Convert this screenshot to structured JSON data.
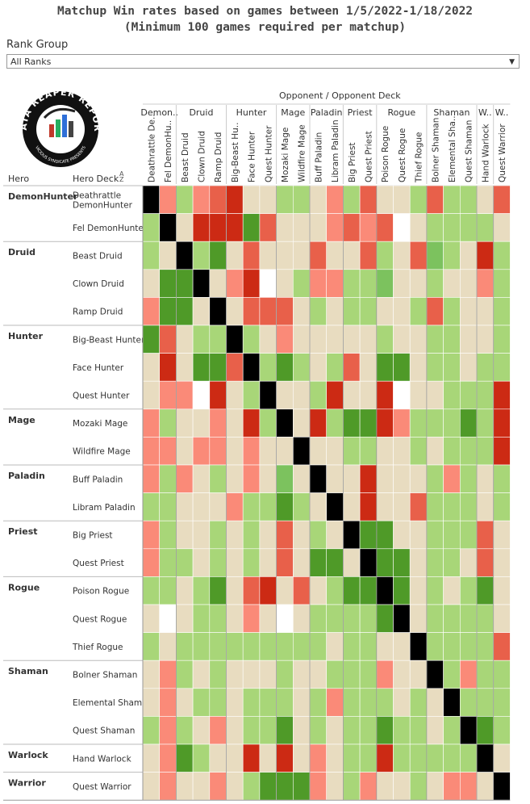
{
  "title_line1": "Matchup Win rates based on games between 1/5/2022-1/18/2022",
  "title_line2": "(Minimum 100 games required per matchup)",
  "filter": {
    "label": "Rank Group",
    "value": "All Ranks"
  },
  "logo": {
    "text_top": "DATA REAPER REPORT",
    "text_bottom": "VICIOUS SYNDICATE PRESENTS"
  },
  "headers": {
    "opponent_axis": "Opponent / Opponent Deck",
    "hero": "Hero",
    "hero_deck": "Hero Deck",
    "sort_icon": "sort-ascending-icon"
  },
  "colors": {
    "mirror": "#000000",
    "neutral": "#e8dcc0",
    "light_green": "#a8d678",
    "mid_green": "#7cc25e",
    "dark_green": "#4f9a28",
    "light_red": "#fa8a78",
    "mid_red": "#e8604a",
    "dark_red": "#cc2a14",
    "white": "#ffffff"
  },
  "chart_data": {
    "type": "heatmap",
    "title": "Matchup Win rates based on games between 1/5/2022-1/18/2022",
    "subtitle": "(Minimum 100 games required per matchup)",
    "xlabel": "Opponent / Opponent Deck",
    "ylabel": "Hero / Hero Deck",
    "opponent_groups": [
      {
        "name": "Demon..",
        "span": 2
      },
      {
        "name": "Druid",
        "span": 3
      },
      {
        "name": "Hunter",
        "span": 3
      },
      {
        "name": "Mage",
        "span": 2
      },
      {
        "name": "Paladin",
        "span": 2
      },
      {
        "name": "Priest",
        "span": 2
      },
      {
        "name": "Rogue",
        "span": 3
      },
      {
        "name": "Shaman",
        "span": 3
      },
      {
        "name": "W..",
        "span": 1
      },
      {
        "name": "W..",
        "span": 1
      }
    ],
    "columns": [
      "Deathrattle De..",
      "Fel DemonHu..",
      "Beast Druid",
      "Clown Druid",
      "Ramp Druid",
      "Big-Beast Hu..",
      "Face Hunter",
      "Quest Hunter",
      "Mozaki Mage",
      "Wildfire Mage",
      "Buff Paladin",
      "Libram Paladin",
      "Big Priest",
      "Quest Priest",
      "Poison Rogue",
      "Quest Rogue",
      "Thief Rogue",
      "Bolner Shaman",
      "Elemental Sha..",
      "Quest Shaman",
      "Hand Warlock",
      "Quest Warrior"
    ],
    "hero_groups": [
      {
        "name": "DemonHunter",
        "span": 2
      },
      {
        "name": "Druid",
        "span": 3
      },
      {
        "name": "Hunter",
        "span": 3
      },
      {
        "name": "Mage",
        "span": 2
      },
      {
        "name": "Paladin",
        "span": 2
      },
      {
        "name": "Priest",
        "span": 2
      },
      {
        "name": "Rogue",
        "span": 3
      },
      {
        "name": "Shaman",
        "span": 3
      },
      {
        "name": "Warlock",
        "span": 1
      },
      {
        "name": "Warrior",
        "span": 1
      }
    ],
    "rows": [
      "Deathrattle DemonHunter",
      "Fel DemonHunter",
      "Beast Druid",
      "Clown Druid",
      "Ramp Druid",
      "Big-Beast Hunter",
      "Face Hunter",
      "Quest Hunter",
      "Mozaki Mage",
      "Wildfire Mage",
      "Buff Paladin",
      "Libram Paladin",
      "Big Priest",
      "Quest Priest",
      "Poison Rogue",
      "Quest Rogue",
      "Thief Rogue",
      "Bolner Shaman",
      "Elemental Shaman",
      "Quest Shaman",
      "Hand Warlock",
      "Quest Warrior"
    ],
    "cell_colors": [
      "KLmLlDnnmmnLmlnnmlmmnl",
      "mKnDDDdlnnnLlLlWnmmmmn",
      "mnKmdnlnnnlnnlmnlMmnDm",
      "nddKnLDWnmLLmmMnnmnnLm",
      "Lddnknlrlnmnmmnnmlmnnm",
      "dlnmmKmnLnnnnnmnnmmnnm",
      "nDnddlkmdmnmlnddnmmnmm",
      "nLLWDnmKnnmDnnDWnnmmmD",
      "LmnnLnDmKnDmddDLmmmdmD",
      "LLnLLnLnnKnnmmnnmnmmmD",
      "LmLnmnLnMnKnnDnnnmLmnm",
      "mmnnnLmmdmnKnDnnlmmmnm",
      "Lmnnmnmnlnmnkddnnmmmln",
      "Lmmnmnmnlnddnkddnmmnln",
      "mmnmdnlDnlnmddKdnmnmdn",
      "nWnmmnLnWnmmmmdKnmmmmn",
      "mnmmmmmmmmmnmmnnKmmmml",
      "nLmnmnnnmnnmmmLnnKmLmm",
      "nLnmmnmmmnmLmmmnmnKmmm",
      "mLmnLnmmdnmnmmdmmnmKdm",
      "nLdmnnDnDnLnmmDmmmmmKn",
      "nLnnLnmdddLnmLnnmnLLnK"
    ],
    "cell_legend": {
      "K": "mirror (same deck)",
      "d": "strong favoured (dark green)",
      "m": "slightly favoured (light green)",
      "n": "even (neutral)",
      "L": "slightly unfavoured (light red)",
      "l": "unfavoured (mid red)",
      "D": "strongly unfavoured (dark red)",
      "W": "insufficient games (blank)",
      "M": "favoured (mid green)",
      "k": "mirror",
      "r": "mid red"
    }
  }
}
